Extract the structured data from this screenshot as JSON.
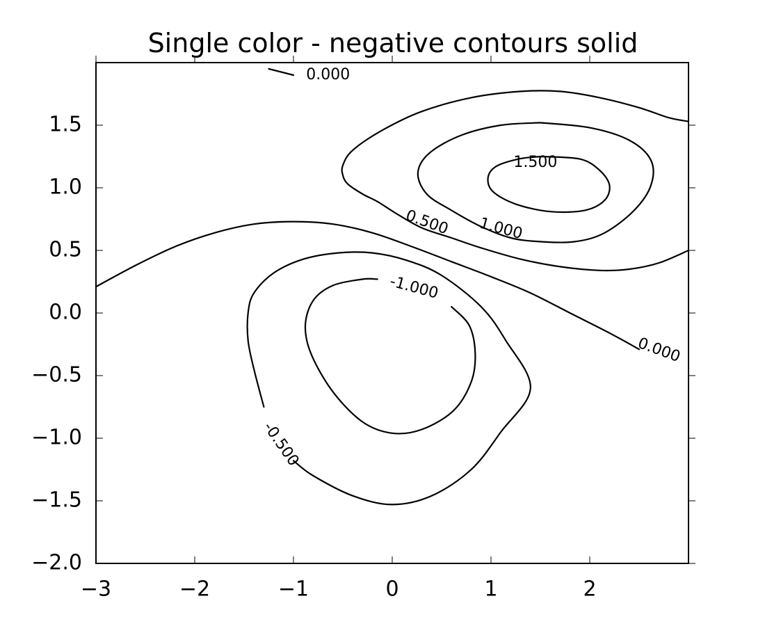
{
  "chart_data": {
    "type": "contour",
    "title": "Single color - negative contours solid",
    "xlabel": "",
    "ylabel": "",
    "xlim": [
      -3,
      3
    ],
    "ylim": [
      -2,
      2
    ],
    "grid": false,
    "line_color": "#000000",
    "x_ticks": [
      {
        "value": -3,
        "label": "−3"
      },
      {
        "value": -2,
        "label": "−2"
      },
      {
        "value": -1,
        "label": "−1"
      },
      {
        "value": 0,
        "label": "0"
      },
      {
        "value": 1,
        "label": "1"
      },
      {
        "value": 2,
        "label": "2"
      }
    ],
    "y_ticks": [
      {
        "value": -2.0,
        "label": "−2.0"
      },
      {
        "value": -1.5,
        "label": "−1.5"
      },
      {
        "value": -1.0,
        "label": "−1.0"
      },
      {
        "value": -0.5,
        "label": "−0.5"
      },
      {
        "value": 0.0,
        "label": "0.0"
      },
      {
        "value": 0.5,
        "label": "0.5"
      },
      {
        "value": 1.0,
        "label": "1.0"
      },
      {
        "value": 1.5,
        "label": "1.5"
      }
    ],
    "contours": [
      {
        "level": 0.0,
        "label": "0.000",
        "closed": false,
        "points": [
          [
            -3.0,
            0.21
          ],
          [
            -2.6,
            0.38
          ],
          [
            -2.2,
            0.53
          ],
          [
            -1.8,
            0.64
          ],
          [
            -1.4,
            0.71
          ],
          [
            -1.0,
            0.73
          ],
          [
            -0.6,
            0.71
          ],
          [
            -0.2,
            0.64
          ],
          [
            0.2,
            0.53
          ],
          [
            0.6,
            0.41
          ],
          [
            1.0,
            0.29
          ],
          [
            1.4,
            0.16
          ],
          [
            1.8,
            0.0
          ],
          [
            2.2,
            -0.16
          ],
          [
            2.5,
            -0.29
          ]
        ],
        "label_at": [
          2.7,
          -0.3
        ],
        "label_angle": 20
      },
      {
        "level": 0.0,
        "label": "0.000",
        "closed": false,
        "points": [
          [
            -1.25,
            1.95
          ],
          [
            -1.0,
            1.9
          ]
        ],
        "label_at": [
          -0.65,
          1.9
        ],
        "label_angle": 0
      },
      {
        "level": 0.5,
        "label": "0.500",
        "closed": false,
        "points": [
          [
            3.0,
            0.5
          ],
          [
            2.7,
            0.4
          ],
          [
            2.4,
            0.35
          ],
          [
            2.1,
            0.34
          ],
          [
            1.7,
            0.37
          ],
          [
            1.3,
            0.43
          ],
          [
            0.9,
            0.52
          ],
          [
            0.6,
            0.6
          ],
          [
            0.3,
            0.68
          ],
          [
            0.05,
            0.79
          ],
          [
            -0.15,
            0.89
          ],
          [
            -0.3,
            0.95
          ],
          [
            -0.45,
            1.03
          ],
          [
            -0.5,
            1.1
          ],
          [
            -0.5,
            1.18
          ],
          [
            -0.4,
            1.3
          ],
          [
            -0.1,
            1.46
          ],
          [
            0.3,
            1.61
          ],
          [
            0.8,
            1.72
          ],
          [
            1.3,
            1.77
          ],
          [
            1.7,
            1.77
          ],
          [
            2.1,
            1.72
          ],
          [
            2.5,
            1.64
          ],
          [
            2.8,
            1.56
          ],
          [
            3.0,
            1.53
          ]
        ],
        "label_at": [
          0.35,
          0.72
        ],
        "label_angle": 20
      },
      {
        "level": 1.0,
        "label": "1.000",
        "closed": true,
        "points": [
          [
            1.5,
            1.52
          ],
          [
            2.0,
            1.48
          ],
          [
            2.4,
            1.38
          ],
          [
            2.62,
            1.22
          ],
          [
            2.62,
            1.02
          ],
          [
            2.45,
            0.82
          ],
          [
            2.15,
            0.64
          ],
          [
            1.85,
            0.57
          ],
          [
            1.5,
            0.57
          ],
          [
            1.2,
            0.6
          ],
          [
            0.9,
            0.69
          ],
          [
            0.6,
            0.82
          ],
          [
            0.35,
            0.95
          ],
          [
            0.26,
            1.12
          ],
          [
            0.38,
            1.28
          ],
          [
            0.7,
            1.42
          ],
          [
            1.1,
            1.5
          ],
          [
            1.5,
            1.52
          ]
        ],
        "label_at": [
          1.1,
          0.67
        ],
        "label_angle": 15
      },
      {
        "level": 1.5,
        "label": "1.500",
        "closed": true,
        "points": [
          [
            1.5,
            1.25
          ],
          [
            1.9,
            1.23
          ],
          [
            2.1,
            1.14
          ],
          [
            2.2,
            1.02
          ],
          [
            2.15,
            0.9
          ],
          [
            1.95,
            0.82
          ],
          [
            1.6,
            0.81
          ],
          [
            1.25,
            0.87
          ],
          [
            1.02,
            0.97
          ],
          [
            0.97,
            1.08
          ],
          [
            1.05,
            1.17
          ],
          [
            1.28,
            1.23
          ],
          [
            1.5,
            1.25
          ]
        ],
        "label_at": [
          1.45,
          1.2
        ],
        "label_angle": 0
      },
      {
        "level": -0.5,
        "label": "-0.500",
        "closed": false,
        "points": [
          [
            -1.3,
            -0.75
          ],
          [
            -1.4,
            -0.45
          ],
          [
            -1.46,
            -0.22
          ],
          [
            -1.46,
            0.0
          ],
          [
            -1.4,
            0.16
          ],
          [
            -1.2,
            0.32
          ],
          [
            -0.9,
            0.43
          ],
          [
            -0.55,
            0.48
          ],
          [
            -0.2,
            0.48
          ],
          [
            0.15,
            0.42
          ],
          [
            0.5,
            0.3
          ],
          [
            0.9,
            0.05
          ],
          [
            1.15,
            -0.22
          ],
          [
            1.4,
            -0.6
          ],
          [
            1.1,
            -0.95
          ],
          [
            0.8,
            -1.25
          ],
          [
            0.4,
            -1.46
          ],
          [
            0.0,
            -1.53
          ],
          [
            -0.4,
            -1.46
          ],
          [
            -0.8,
            -1.3
          ],
          [
            -1.0,
            -1.18
          ]
        ],
        "label_at": [
          -1.13,
          -1.05
        ],
        "label_angle": 55
      },
      {
        "level": -1.0,
        "label": "-1.000",
        "closed": false,
        "points": [
          [
            0.6,
            0.05
          ],
          [
            0.78,
            -0.1
          ],
          [
            0.84,
            -0.32
          ],
          [
            0.8,
            -0.55
          ],
          [
            0.62,
            -0.78
          ],
          [
            0.3,
            -0.93
          ],
          [
            0.0,
            -0.96
          ],
          [
            -0.3,
            -0.87
          ],
          [
            -0.6,
            -0.63
          ],
          [
            -0.82,
            -0.33
          ],
          [
            -0.88,
            -0.1
          ],
          [
            -0.8,
            0.1
          ],
          [
            -0.6,
            0.22
          ],
          [
            -0.3,
            0.27
          ],
          [
            -0.15,
            0.27
          ]
        ],
        "label_at": [
          0.22,
          0.2
        ],
        "label_angle": 15
      }
    ]
  }
}
